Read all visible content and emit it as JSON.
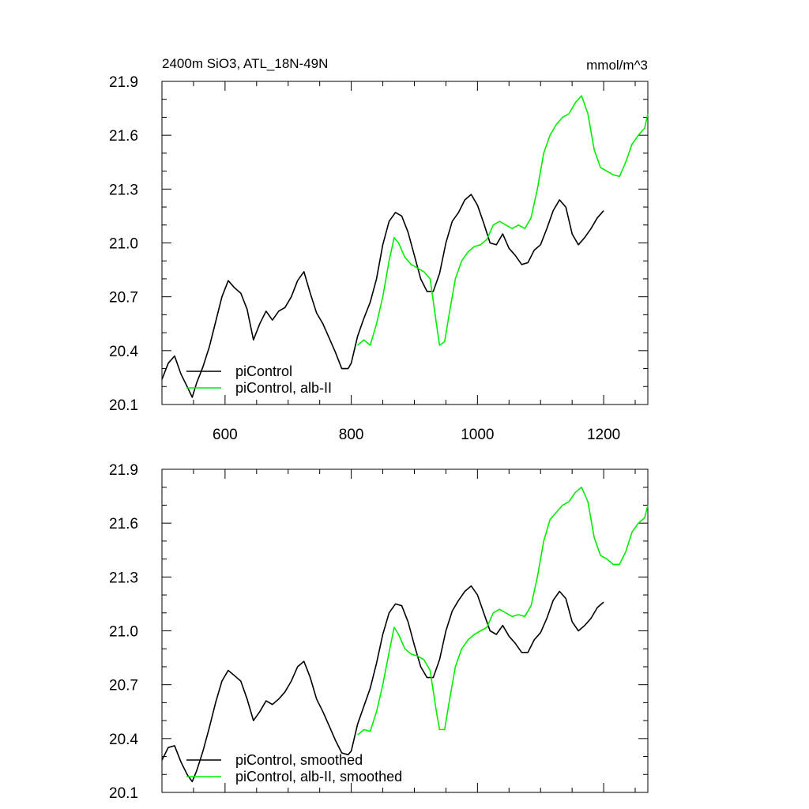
{
  "chart_data": [
    {
      "type": "line",
      "title": "2400m SiO3, ATL_18N-49N",
      "units": "mmol/m^3",
      "xlim": [
        500,
        1270
      ],
      "ylim": [
        20.1,
        21.9
      ],
      "xticks": [
        600,
        800,
        1000,
        1200
      ],
      "xtick_labels": [
        "600",
        "800",
        "1000",
        "1200"
      ],
      "yticks": [
        20.1,
        20.4,
        20.7,
        21.0,
        21.3,
        21.6,
        21.9
      ],
      "ytick_labels": [
        "20.1",
        "20.4",
        "20.7",
        "21.0",
        "21.3",
        "21.6",
        "21.9"
      ],
      "grid": false,
      "legend_position": "bottom-left",
      "series": [
        {
          "name": "piControl",
          "color": "#000000",
          "x": [
            500,
            510,
            520,
            530,
            540,
            548,
            555,
            565,
            575,
            585,
            595,
            605,
            615,
            625,
            635,
            645,
            655,
            665,
            675,
            685,
            695,
            705,
            715,
            725,
            735,
            745,
            755,
            765,
            775,
            785,
            795,
            800,
            810,
            820,
            830,
            840,
            850,
            860,
            870,
            880,
            890,
            900,
            910,
            920,
            930,
            940,
            950,
            960,
            970,
            980,
            990,
            1000,
            1010,
            1020,
            1030,
            1040,
            1050,
            1060,
            1070,
            1080,
            1090,
            1100,
            1110,
            1120,
            1130,
            1140,
            1150,
            1160,
            1170,
            1180,
            1190,
            1200
          ],
          "values": [
            20.24,
            20.33,
            20.37,
            20.27,
            20.2,
            20.14,
            20.22,
            20.31,
            20.42,
            20.56,
            20.7,
            20.79,
            20.75,
            20.72,
            20.63,
            20.46,
            20.55,
            20.62,
            20.57,
            20.62,
            20.64,
            20.7,
            20.79,
            20.84,
            20.72,
            20.61,
            20.55,
            20.47,
            20.39,
            20.3,
            20.3,
            20.33,
            20.48,
            20.58,
            20.67,
            20.8,
            20.99,
            21.12,
            21.17,
            21.15,
            21.06,
            20.93,
            20.8,
            20.73,
            20.73,
            20.83,
            21.0,
            21.12,
            21.17,
            21.24,
            21.27,
            21.21,
            21.11,
            21.0,
            20.99,
            21.05,
            20.97,
            20.93,
            20.88,
            20.89,
            20.96,
            20.99,
            21.08,
            21.18,
            21.24,
            21.2,
            21.05,
            20.99,
            21.03,
            21.08,
            21.14,
            21.18
          ]
        },
        {
          "name": "piControl, alb-II",
          "color": "#00ee00",
          "x": [
            810,
            820,
            830,
            840,
            850,
            860,
            868,
            875,
            885,
            895,
            905,
            915,
            925,
            935,
            940,
            948,
            955,
            965,
            975,
            985,
            995,
            1005,
            1015,
            1025,
            1035,
            1045,
            1055,
            1065,
            1075,
            1085,
            1095,
            1105,
            1115,
            1125,
            1135,
            1145,
            1155,
            1165,
            1175,
            1185,
            1195,
            1205,
            1215,
            1225,
            1235,
            1245,
            1255,
            1265,
            1270
          ],
          "values": [
            20.43,
            20.46,
            20.43,
            20.55,
            20.7,
            20.9,
            21.03,
            21.0,
            20.92,
            20.88,
            20.86,
            20.84,
            20.8,
            20.55,
            20.43,
            20.45,
            20.6,
            20.8,
            20.9,
            20.95,
            20.98,
            20.99,
            21.02,
            21.1,
            21.12,
            21.1,
            21.08,
            21.1,
            21.08,
            21.14,
            21.3,
            21.5,
            21.6,
            21.66,
            21.7,
            21.72,
            21.78,
            21.82,
            21.72,
            21.52,
            21.42,
            21.4,
            21.38,
            21.37,
            21.45,
            21.55,
            21.6,
            21.64,
            21.72
          ]
        }
      ]
    },
    {
      "type": "line",
      "title": "",
      "xlim": [
        500,
        1270
      ],
      "ylim": [
        20.1,
        21.9
      ],
      "xticks": [
        600,
        800,
        1000,
        1200
      ],
      "yticks": [
        20.1,
        20.4,
        20.7,
        21.0,
        21.3,
        21.6,
        21.9
      ],
      "ytick_labels": [
        "20.1",
        "20.4",
        "20.7",
        "21.0",
        "21.3",
        "21.6",
        "21.9"
      ],
      "grid": false,
      "legend_position": "bottom-left",
      "series": [
        {
          "name": "piControl, smoothed",
          "color": "#000000",
          "x": [
            500,
            510,
            520,
            530,
            540,
            548,
            555,
            565,
            575,
            585,
            595,
            605,
            615,
            625,
            635,
            645,
            655,
            665,
            675,
            685,
            695,
            705,
            715,
            725,
            735,
            745,
            755,
            765,
            775,
            785,
            795,
            800,
            810,
            820,
            830,
            840,
            850,
            860,
            870,
            880,
            890,
            900,
            910,
            920,
            930,
            940,
            950,
            960,
            970,
            980,
            990,
            1000,
            1010,
            1020,
            1030,
            1040,
            1050,
            1060,
            1070,
            1080,
            1090,
            1100,
            1110,
            1120,
            1130,
            1140,
            1150,
            1160,
            1170,
            1180,
            1190,
            1200
          ],
          "values": [
            20.28,
            20.35,
            20.36,
            20.27,
            20.2,
            20.16,
            20.22,
            20.33,
            20.46,
            20.6,
            20.72,
            20.78,
            20.75,
            20.72,
            20.62,
            20.5,
            20.55,
            20.61,
            20.59,
            20.62,
            20.66,
            20.72,
            20.8,
            20.83,
            20.74,
            20.62,
            20.55,
            20.47,
            20.39,
            20.32,
            20.31,
            20.33,
            20.48,
            20.58,
            20.68,
            20.82,
            20.98,
            21.1,
            21.15,
            21.14,
            21.05,
            20.92,
            20.8,
            20.74,
            20.74,
            20.84,
            21.0,
            21.11,
            21.17,
            21.22,
            21.25,
            21.2,
            21.1,
            21.0,
            20.98,
            21.03,
            20.97,
            20.93,
            20.88,
            20.88,
            20.95,
            20.99,
            21.07,
            21.17,
            21.22,
            21.18,
            21.05,
            21.0,
            21.03,
            21.07,
            21.13,
            21.16
          ]
        },
        {
          "name": "piControl, alb-II, smoothed",
          "color": "#00ee00",
          "x": [
            810,
            820,
            830,
            840,
            850,
            860,
            868,
            875,
            885,
            895,
            905,
            915,
            925,
            935,
            940,
            948,
            955,
            965,
            975,
            985,
            995,
            1005,
            1015,
            1025,
            1035,
            1045,
            1055,
            1065,
            1075,
            1085,
            1095,
            1105,
            1115,
            1125,
            1135,
            1145,
            1155,
            1165,
            1175,
            1185,
            1195,
            1205,
            1215,
            1225,
            1235,
            1245,
            1255,
            1265,
            1270
          ],
          "values": [
            20.42,
            20.45,
            20.44,
            20.55,
            20.7,
            20.88,
            21.02,
            20.98,
            20.9,
            20.87,
            20.86,
            20.84,
            20.78,
            20.55,
            20.45,
            20.45,
            20.6,
            20.8,
            20.9,
            20.95,
            20.98,
            21.0,
            21.02,
            21.1,
            21.12,
            21.1,
            21.08,
            21.09,
            21.08,
            21.14,
            21.3,
            21.5,
            21.62,
            21.66,
            21.7,
            21.72,
            21.77,
            21.8,
            21.72,
            21.52,
            21.42,
            21.4,
            21.37,
            21.37,
            21.44,
            21.55,
            21.6,
            21.63,
            21.7
          ]
        }
      ]
    }
  ]
}
